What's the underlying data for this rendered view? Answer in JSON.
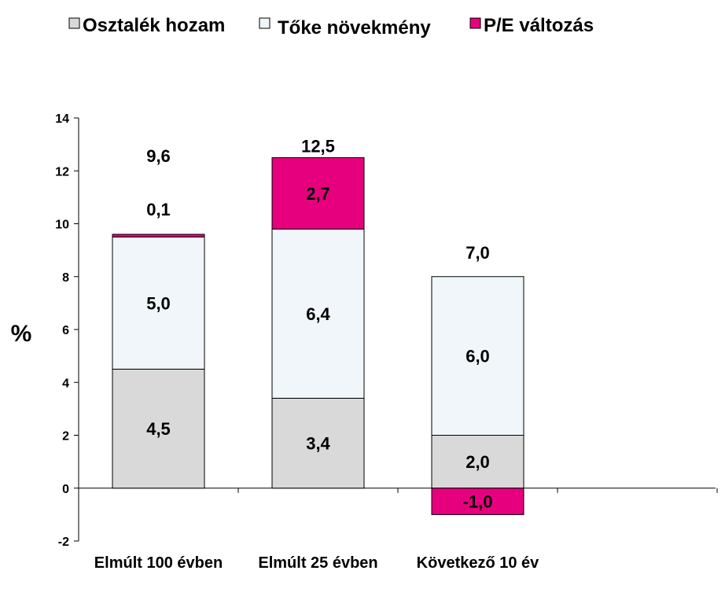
{
  "chart_data": {
    "type": "bar",
    "stacked": true,
    "ylabel": "%",
    "ylim": [
      -2,
      14
    ],
    "yticks": [
      -2,
      0,
      2,
      4,
      6,
      8,
      10,
      12,
      14
    ],
    "ytick_labels": [
      "-2",
      "0",
      "2",
      "4",
      "6",
      "8",
      "10",
      "12",
      "14"
    ],
    "categories": [
      "Elmúlt 100 évben",
      "Elmúlt 25 évben",
      "Következő 10 év"
    ],
    "series": [
      {
        "name": "Osztalék hozam",
        "color": "#d9d9d9",
        "values": [
          4.5,
          3.4,
          2.0
        ],
        "labels": [
          "4,5",
          "3,4",
          "2,0"
        ]
      },
      {
        "name": "Tőke növekmény",
        "color": "#f0f6f9",
        "values": [
          5.0,
          6.4,
          6.0
        ],
        "labels": [
          "5,0",
          "6,4",
          "6,0"
        ]
      },
      {
        "name": "P/E változás",
        "color": "#e6007e",
        "values": [
          0.1,
          2.7,
          -1.0
        ],
        "labels": [
          "0,1",
          "2,7",
          "-1,0"
        ]
      }
    ],
    "totals": [
      9.6,
      12.5,
      7.0
    ],
    "total_labels": [
      "9,6",
      "12,5",
      "7,0"
    ],
    "legend_position": "top",
    "grid": false
  }
}
